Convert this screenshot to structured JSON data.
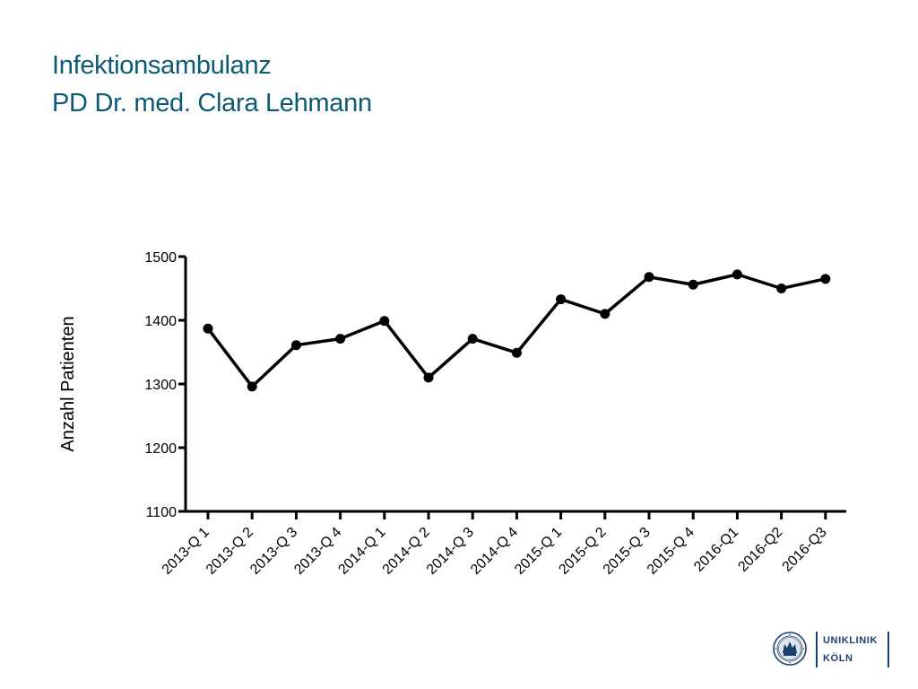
{
  "header": {
    "title_line1": "Infektionsambulanz",
    "title_line2": "PD Dr. med. Clara Lehmann"
  },
  "logo": {
    "line1": "UNIKLINIK",
    "line2": "KÖLN",
    "color": "#1b3f6e"
  },
  "colors": {
    "title": "#0c5a73",
    "series": "#000000"
  },
  "chart_data": {
    "type": "line",
    "title": "",
    "xlabel": "",
    "ylabel": "Anzahl Patienten",
    "ylim": [
      1100,
      1500
    ],
    "yticks": [
      1100,
      1200,
      1300,
      1400,
      1500
    ],
    "grid": false,
    "categories": [
      "2013-Q 1",
      "2013-Q 2",
      "2013-Q 3",
      "2013-Q 4",
      "2014-Q 1",
      "2014-Q 2",
      "2014-Q 3",
      "2014-Q 4",
      "2015-Q 1",
      "2015-Q 2",
      "2015-Q 3",
      "2015-Q 4",
      "2016-Q1",
      "2016-Q2",
      "2016-Q3"
    ],
    "series": [
      {
        "values": [
          1387,
          1296,
          1361,
          1371,
          1399,
          1310,
          1371,
          1349,
          1433,
          1410,
          1468,
          1456,
          1472,
          1450,
          1465
        ]
      }
    ]
  }
}
